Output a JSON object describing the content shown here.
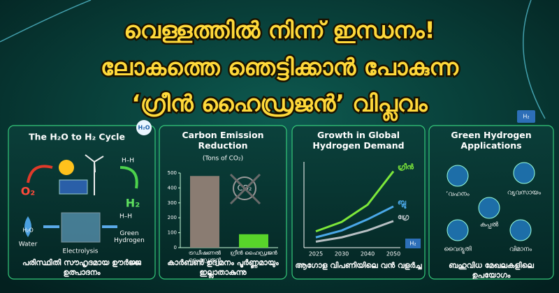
{
  "headline": [
    "വെള്ളത്തിൽ നിന്ന് ഇന്ധനം!",
    "ലോകത്തെ ഞെട്ടിക്കാൻ പോകുന്ന",
    "‘ഗ്രീൻ ഹൈഡ്രജൻ’ വിപ്ലവം"
  ],
  "cycle": {
    "title": "The H₂O to H₂ Cycle",
    "badge": "H₂O",
    "o2": "O₂",
    "h2": "H₂",
    "h2o": "H₂O",
    "water": "Water",
    "electrolysis": "Electrolysis",
    "green_hydrogen": "Green Hydrogen",
    "molecule": "H–H",
    "caption": "പരിസ്ഥിതി സൗഹൃദമായ ഊർജ്ജ ഉത്പാദനം"
  },
  "emission": {
    "chart_data": {
      "type": "bar",
      "title": "Carbon Emission Reduction",
      "subtitle": "(Tons of CO₂)",
      "categories": [
        "ട്രഡീഷണൽ ഹൈഡ്രജൻ",
        "ഗ്രീൻ ഹൈഡ്രജൻ"
      ],
      "values": [
        480,
        90
      ],
      "colors": [
        "#8a7c72",
        "#58d42a"
      ],
      "ylim": [
        0,
        500
      ],
      "yticks": [
        0,
        100,
        200,
        300,
        400,
        500
      ]
    },
    "icon": "CO₂",
    "caption": "കാർബൺ ഉദ്വമനം പൂർണ്ണമായും ഇല്ലാതാകുന്നു"
  },
  "demand": {
    "chart_data": {
      "type": "line",
      "title": "Growth in Global Hydrogen Demand",
      "categories": [
        "2025",
        "2030",
        "2040",
        "2050"
      ],
      "ylim": [
        0,
        100
      ],
      "series": [
        {
          "name": "ഗ്രീൻ",
          "color": "#7de83a",
          "values": [
            19,
            30,
            50,
            89
          ]
        },
        {
          "name": "ബ്ലൂ",
          "color": "#4aa8e8",
          "values": [
            12,
            20,
            33,
            48
          ]
        },
        {
          "name": "ഗ്രേ",
          "color": "#b8c0c4",
          "values": [
            7,
            12,
            20,
            31
          ]
        }
      ]
    },
    "truck": "H₂",
    "caption": "ആഗോള വിപണിയിലെ വൻ വളർച്ച"
  },
  "applications": {
    "title": "Green Hydrogen Applications",
    "truck": "H₂",
    "items": [
      "‘വഹനം",
      "വ്യവസായം",
      "കപ്പൽ",
      "വൈദ്യുതി",
      "വിമാനം"
    ],
    "caption": "ബഹുവിധ മേഖലകളിലെ ഉപയോഗം"
  }
}
